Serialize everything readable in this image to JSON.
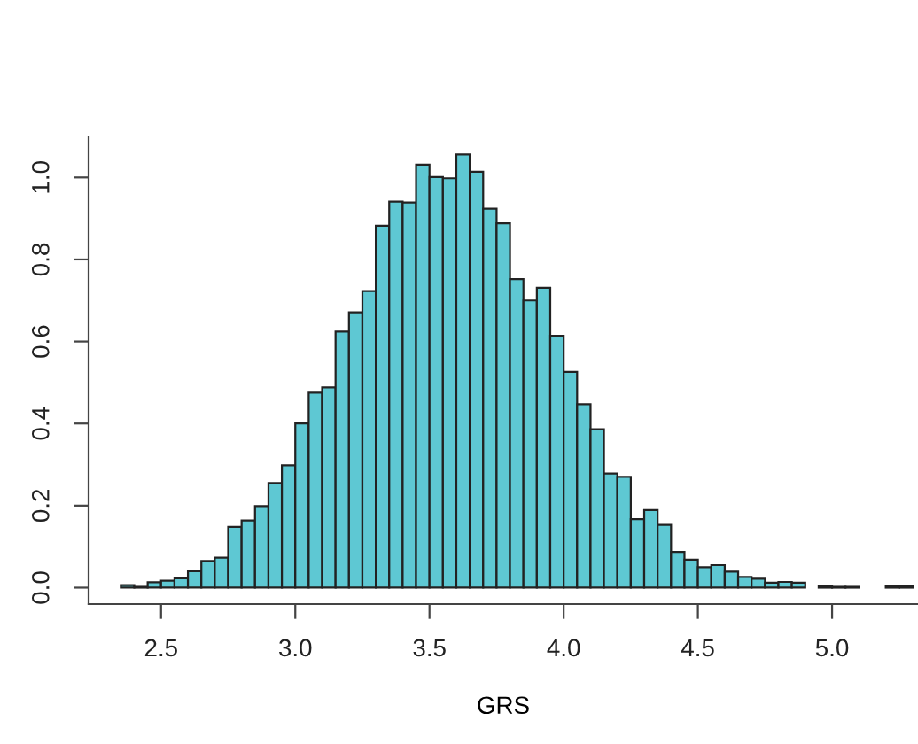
{
  "chart_data": {
    "type": "histogram",
    "xlabel": "GRS",
    "color": "#5ec8d3",
    "bins": [
      2.35,
      2.4,
      2.45,
      2.5,
      2.55,
      2.6,
      2.65,
      2.7,
      2.75,
      2.8,
      2.85,
      2.9,
      2.95,
      3.0,
      3.05,
      3.1,
      3.15,
      3.2,
      3.25,
      3.3,
      3.35,
      3.4,
      3.45,
      3.5,
      3.55,
      3.6,
      3.65,
      3.7,
      3.75,
      3.8,
      3.85,
      3.9,
      3.95,
      4.0,
      4.05,
      4.1,
      4.15,
      4.2,
      4.25,
      4.3,
      4.35,
      4.4,
      4.45,
      4.5,
      4.55,
      4.6,
      4.65,
      4.7,
      4.75,
      4.8,
      4.85,
      4.9,
      4.95,
      5.0,
      5.05,
      5.1,
      5.15,
      5.2,
      5.25,
      5.3
    ],
    "values": [
      0.006,
      0.002,
      0.013,
      0.017,
      0.023,
      0.04,
      0.065,
      0.073,
      0.148,
      0.164,
      0.199,
      0.255,
      0.298,
      0.4,
      0.475,
      0.488,
      0.624,
      0.671,
      0.723,
      0.882,
      0.941,
      0.939,
      1.031,
      1.001,
      0.998,
      1.056,
      1.014,
      0.924,
      0.888,
      0.752,
      0.7,
      0.731,
      0.614,
      0.526,
      0.447,
      0.386,
      0.278,
      0.27,
      0.167,
      0.189,
      0.153,
      0.087,
      0.068,
      0.05,
      0.055,
      0.039,
      0.026,
      0.022,
      0.012,
      0.014,
      0.012,
      0,
      0.004,
      0.002,
      0.002,
      0,
      0,
      0.003,
      0.003
    ],
    "xlim": [
      2.23,
      5.32
    ],
    "ylim": [
      -0.04,
      1.1
    ],
    "xticks": [
      {
        "value": 2.5,
        "label": "2.5"
      },
      {
        "value": 3.0,
        "label": "3.0"
      },
      {
        "value": 3.5,
        "label": "3.5"
      },
      {
        "value": 4.0,
        "label": "4.0"
      },
      {
        "value": 4.5,
        "label": "4.5"
      },
      {
        "value": 5.0,
        "label": "5.0"
      }
    ],
    "yticks": [
      {
        "value": 0,
        "label": "0.0"
      },
      {
        "value": 0.2,
        "label": "0.2"
      },
      {
        "value": 0.4,
        "label": "0.4"
      },
      {
        "value": 0.6,
        "label": "0.6"
      },
      {
        "value": 0.8,
        "label": "0.8"
      },
      {
        "value": 1.0,
        "label": "1.0"
      }
    ],
    "grid": false
  }
}
